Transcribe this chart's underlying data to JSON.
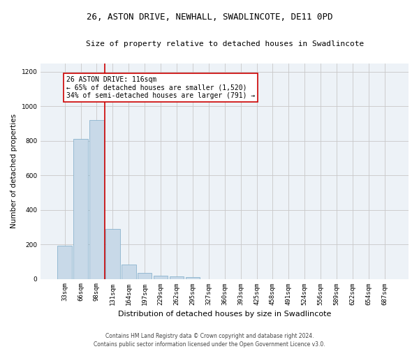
{
  "title": "26, ASTON DRIVE, NEWHALL, SWADLINCOTE, DE11 0PD",
  "subtitle": "Size of property relative to detached houses in Swadlincote",
  "xlabel": "Distribution of detached houses by size in Swadlincote",
  "ylabel": "Number of detached properties",
  "bar_color": "#c8d9e8",
  "bar_edge_color": "#7aaac8",
  "categories": [
    "33sqm",
    "66sqm",
    "98sqm",
    "131sqm",
    "164sqm",
    "197sqm",
    "229sqm",
    "262sqm",
    "295sqm",
    "327sqm",
    "360sqm",
    "393sqm",
    "425sqm",
    "458sqm",
    "491sqm",
    "524sqm",
    "556sqm",
    "589sqm",
    "622sqm",
    "654sqm",
    "687sqm"
  ],
  "values": [
    193,
    810,
    920,
    290,
    85,
    35,
    20,
    15,
    10,
    0,
    0,
    0,
    0,
    0,
    0,
    0,
    0,
    0,
    0,
    0,
    0
  ],
  "ylim": [
    0,
    1250
  ],
  "yticks": [
    0,
    200,
    400,
    600,
    800,
    1000,
    1200
  ],
  "vline_x_index": 2.5,
  "annotation_text": "26 ASTON DRIVE: 116sqm\n← 65% of detached houses are smaller (1,520)\n34% of semi-detached houses are larger (791) →",
  "annotation_box_color": "#ffffff",
  "annotation_box_edge": "#cc0000",
  "vline_color": "#cc0000",
  "footer_line1": "Contains HM Land Registry data © Crown copyright and database right 2024.",
  "footer_line2": "Contains public sector information licensed under the Open Government Licence v3.0.",
  "bg_color": "#edf2f7",
  "grid_color": "#c8c8c8",
  "title_fontsize": 9,
  "subtitle_fontsize": 8,
  "tick_fontsize": 6.5,
  "ylabel_fontsize": 7.5,
  "xlabel_fontsize": 8,
  "annotation_fontsize": 7,
  "footer_fontsize": 5.5
}
